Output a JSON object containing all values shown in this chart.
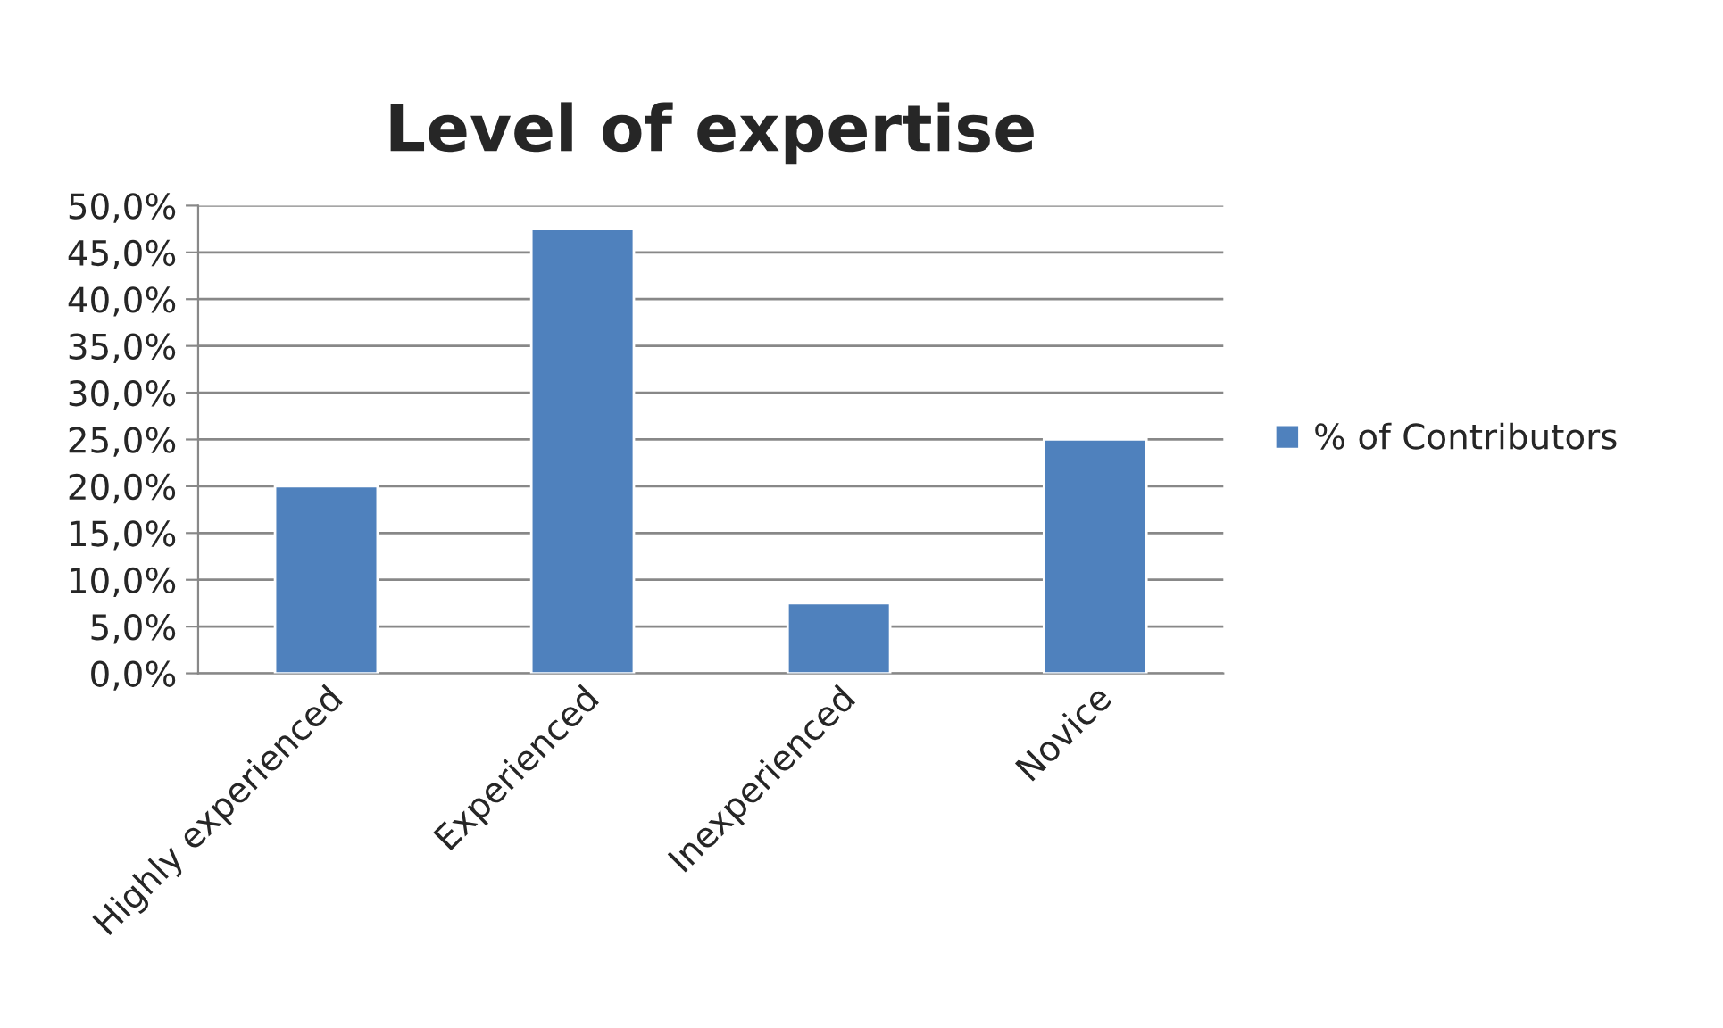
{
  "chart_data": {
    "type": "bar",
    "title": "Level of expertise",
    "categories": [
      "Highly experienced",
      "Experienced",
      "Inexperienced",
      "Novice"
    ],
    "series": [
      {
        "name": "% of Contributors",
        "color": "#4f81bd",
        "values": [
          20.0,
          47.5,
          7.5,
          25.0
        ]
      }
    ],
    "ylim": [
      0,
      50
    ],
    "yticks": [
      {
        "value": 0,
        "label": "0,0%"
      },
      {
        "value": 5,
        "label": "5,0%"
      },
      {
        "value": 10,
        "label": "10,0%"
      },
      {
        "value": 15,
        "label": "15,0%"
      },
      {
        "value": 20,
        "label": "20,0%"
      },
      {
        "value": 25,
        "label": "25,0%"
      },
      {
        "value": 30,
        "label": "30,0%"
      },
      {
        "value": 35,
        "label": "35,0%"
      },
      {
        "value": 40,
        "label": "40,0%"
      },
      {
        "value": 45,
        "label": "45,0%"
      },
      {
        "value": 50,
        "label": "50,0%"
      }
    ],
    "grid": "y",
    "legend": "right"
  }
}
